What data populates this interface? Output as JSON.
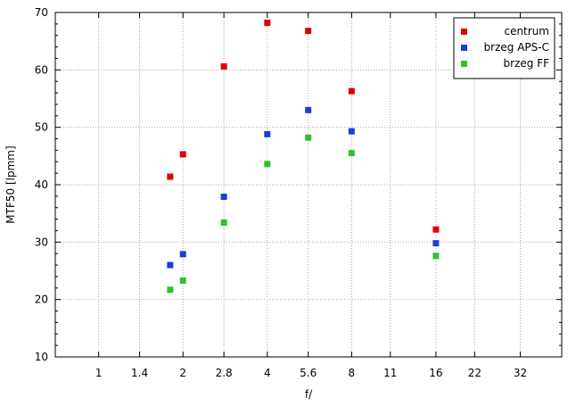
{
  "chart_data": {
    "type": "scatter",
    "xlabel": "f/",
    "ylabel": "MTF50 [lpmm]",
    "x_scale": "log2",
    "xlim": [
      0.7,
      45
    ],
    "ylim": [
      10,
      70
    ],
    "x_ticks": [
      {
        "value": 1,
        "label": "1"
      },
      {
        "value": 1.4,
        "label": "1.4"
      },
      {
        "value": 2,
        "label": "2"
      },
      {
        "value": 2.8,
        "label": "2.8"
      },
      {
        "value": 4,
        "label": "4"
      },
      {
        "value": 5.6,
        "label": "5.6"
      },
      {
        "value": 8,
        "label": "8"
      },
      {
        "value": 11,
        "label": "11"
      },
      {
        "value": 16,
        "label": "16"
      },
      {
        "value": 22,
        "label": "22"
      },
      {
        "value": 32,
        "label": "32"
      }
    ],
    "y_ticks": [
      10,
      20,
      30,
      40,
      50,
      60,
      70
    ],
    "grid": true,
    "legend_position": "top-right",
    "series": [
      {
        "name": "centrum",
        "color": "#e00000",
        "points": [
          [
            1.8,
            41.4
          ],
          [
            2,
            45.3
          ],
          [
            2.8,
            60.6
          ],
          [
            4,
            68.2
          ],
          [
            5.6,
            66.8
          ],
          [
            8,
            56.3
          ],
          [
            16,
            32.2
          ]
        ]
      },
      {
        "name": "brzeg APS-C",
        "color": "#1a3fd6",
        "points": [
          [
            1.8,
            26.0
          ],
          [
            2,
            27.9
          ],
          [
            2.8,
            37.9
          ],
          [
            4,
            48.8
          ],
          [
            5.6,
            53.0
          ],
          [
            8,
            49.3
          ],
          [
            16,
            29.8
          ]
        ]
      },
      {
        "name": "brzeg FF",
        "color": "#30c030",
        "points": [
          [
            1.8,
            21.7
          ],
          [
            2,
            23.3
          ],
          [
            2.8,
            33.4
          ],
          [
            4,
            43.6
          ],
          [
            5.6,
            48.2
          ],
          [
            8,
            45.5
          ],
          [
            16,
            27.6
          ]
        ]
      }
    ]
  }
}
